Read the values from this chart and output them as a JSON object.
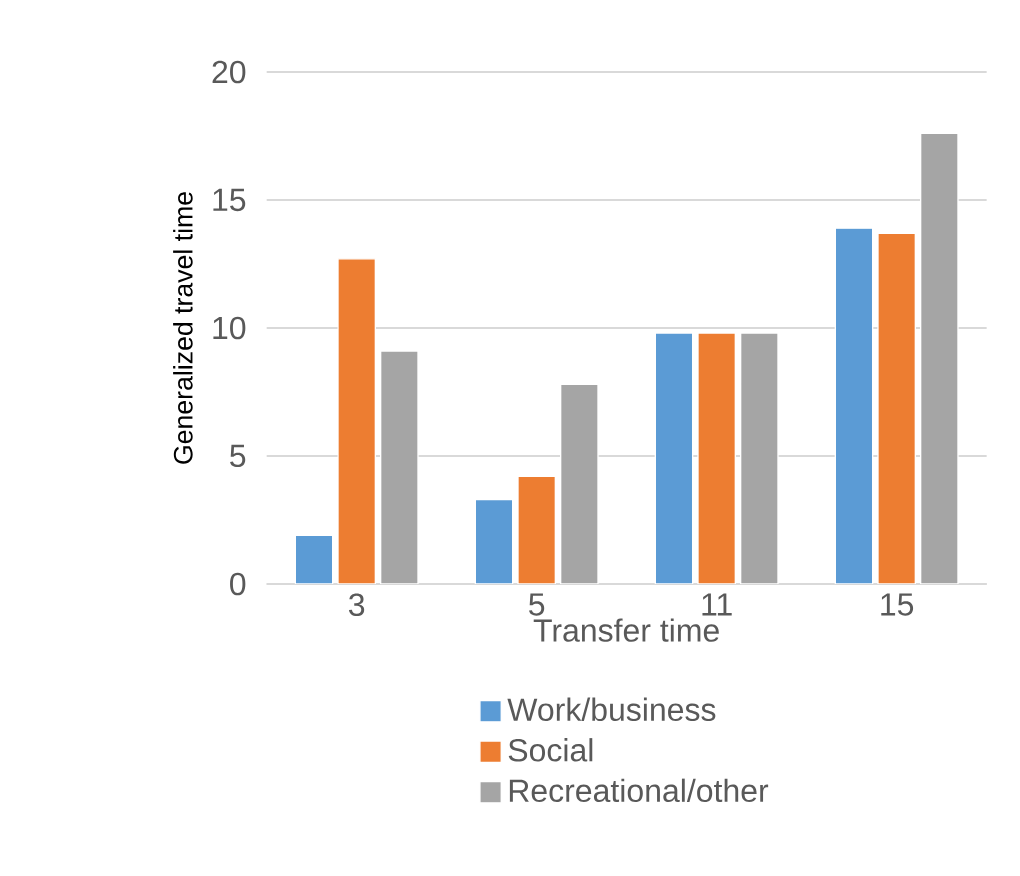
{
  "chart_data": {
    "type": "bar",
    "xlabel": "Transfer time",
    "ylabel": "Generalized travel time",
    "categories": [
      "3",
      "5",
      "11",
      "15"
    ],
    "series": [
      {
        "name": "Work/business",
        "color": "#5b9bd5",
        "values": [
          1.9,
          3.3,
          9.8,
          13.9
        ]
      },
      {
        "name": "Social",
        "color": "#ed7d31",
        "values": [
          12.7,
          4.2,
          9.8,
          13.7
        ]
      },
      {
        "name": "Recreational/other",
        "color": "#a5a5a5",
        "values": [
          9.1,
          7.8,
          9.8,
          17.6
        ]
      }
    ],
    "ylim": [
      0,
      20
    ],
    "yticks": [
      0,
      5,
      10,
      15,
      20
    ],
    "grid": "y",
    "legend": "bottom"
  }
}
